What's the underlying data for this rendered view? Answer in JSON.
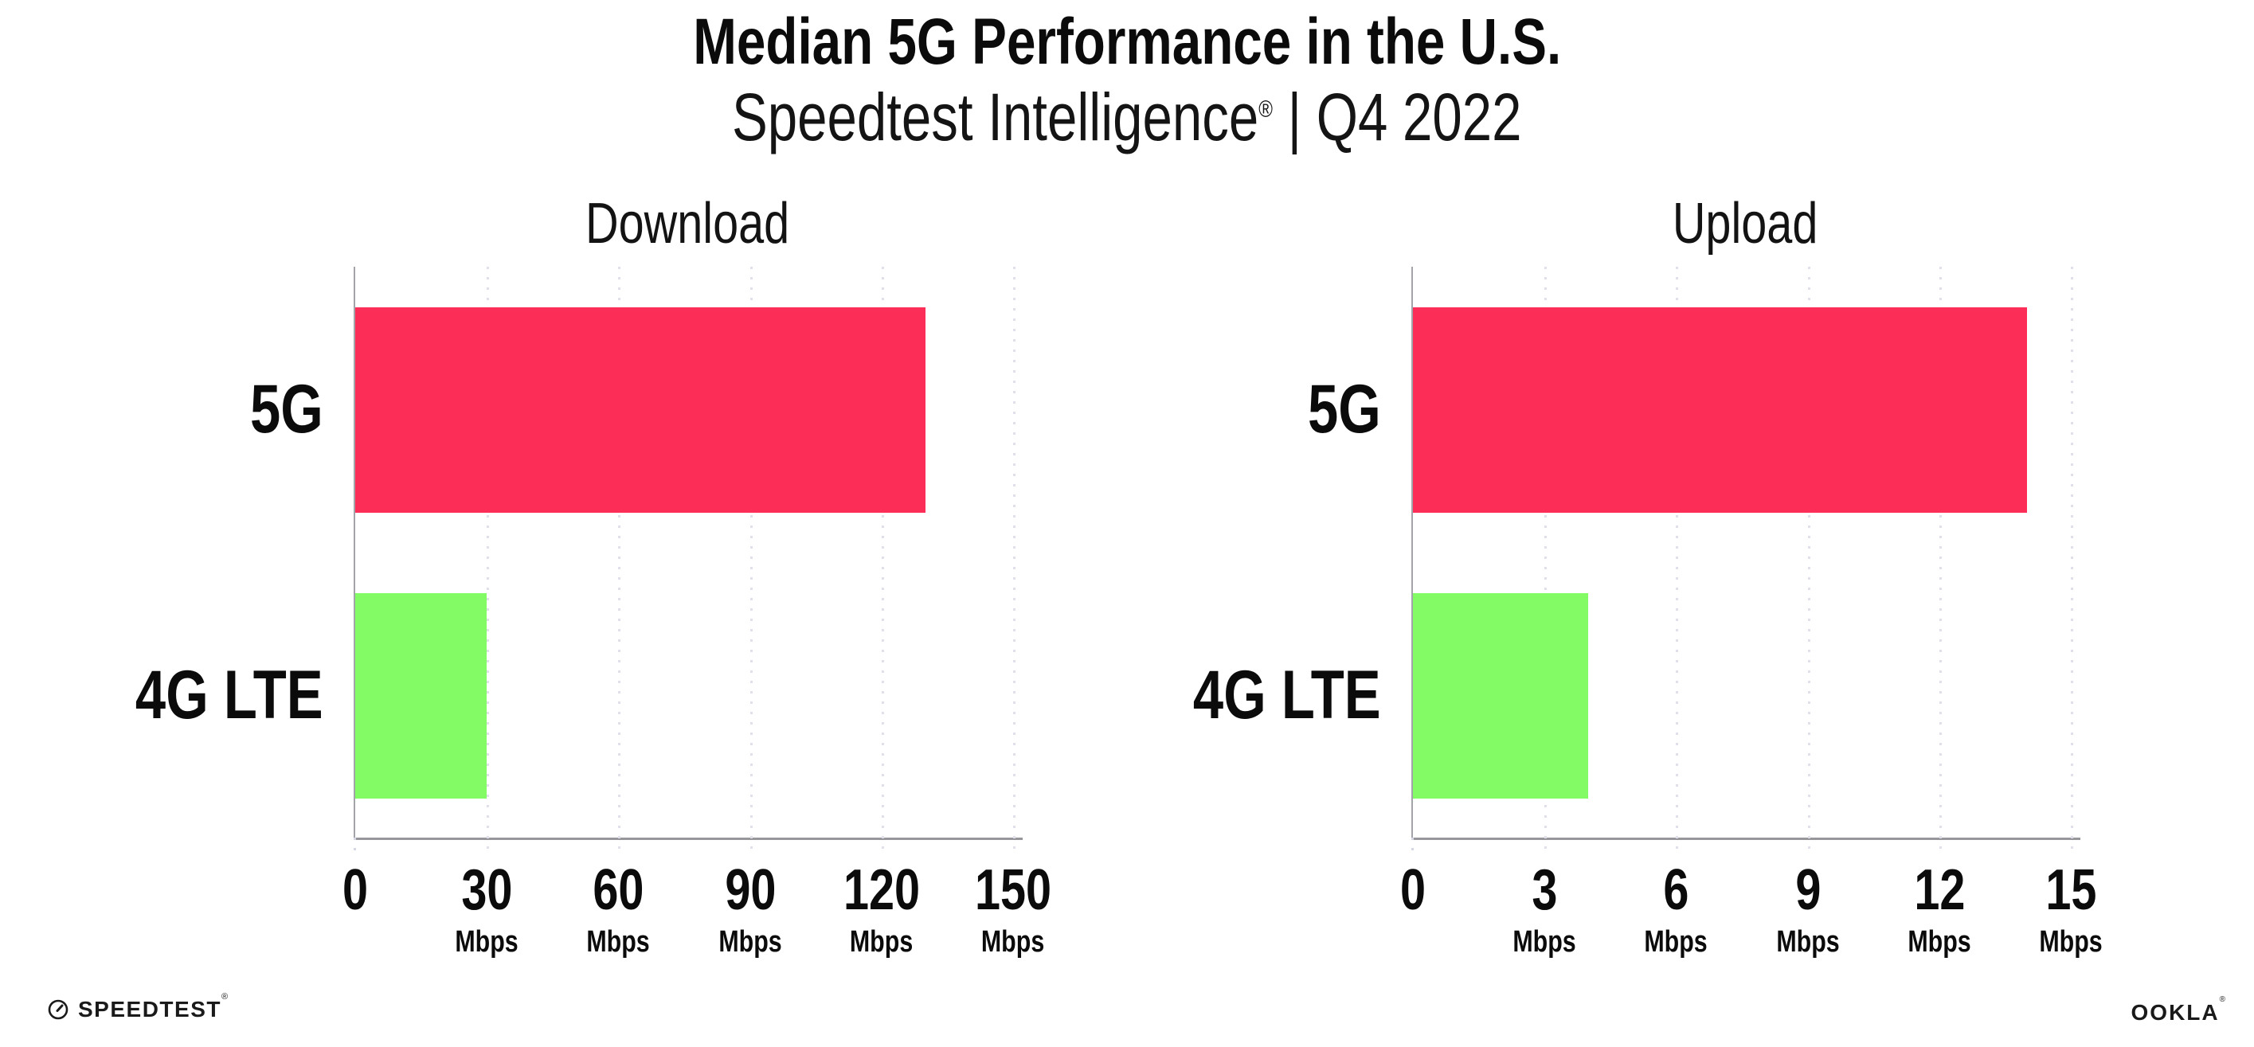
{
  "header": {
    "title": "Median 5G Performance in the U.S.",
    "subtitle_brand": "Speedtest Intelligence",
    "subtitle_reg": "®",
    "subtitle_rest": " | Q4 2022"
  },
  "colors": {
    "bar_5g": "#FC2D56",
    "bar_4g": "#82FB64",
    "axis": "#96969b",
    "grid_dot": "#dfe0ea",
    "text": "#0b0b0b"
  },
  "chart_data": [
    {
      "type": "bar",
      "orientation": "horizontal",
      "title": "Download",
      "categories": [
        "5G",
        "4G LTE"
      ],
      "values": [
        130,
        30
      ],
      "value_unit": "Mbps",
      "xlim": [
        0,
        150
      ],
      "xticks": [
        0,
        30,
        60,
        90,
        120,
        150
      ],
      "xtick_unit": "Mbps",
      "grid": "dotted-vertical",
      "legend": "none"
    },
    {
      "type": "bar",
      "orientation": "horizontal",
      "title": "Upload",
      "categories": [
        "5G",
        "4G LTE"
      ],
      "values": [
        14,
        4
      ],
      "value_unit": "Mbps",
      "xlim": [
        0,
        15
      ],
      "xticks": [
        0,
        3,
        6,
        9,
        12,
        15
      ],
      "xtick_unit": "Mbps",
      "grid": "dotted-vertical",
      "legend": "none"
    }
  ],
  "footer": {
    "speedtest_label": "SPEEDTEST",
    "speedtest_reg": "®",
    "ookla_label": "OOKLA",
    "ookla_reg": "®"
  }
}
